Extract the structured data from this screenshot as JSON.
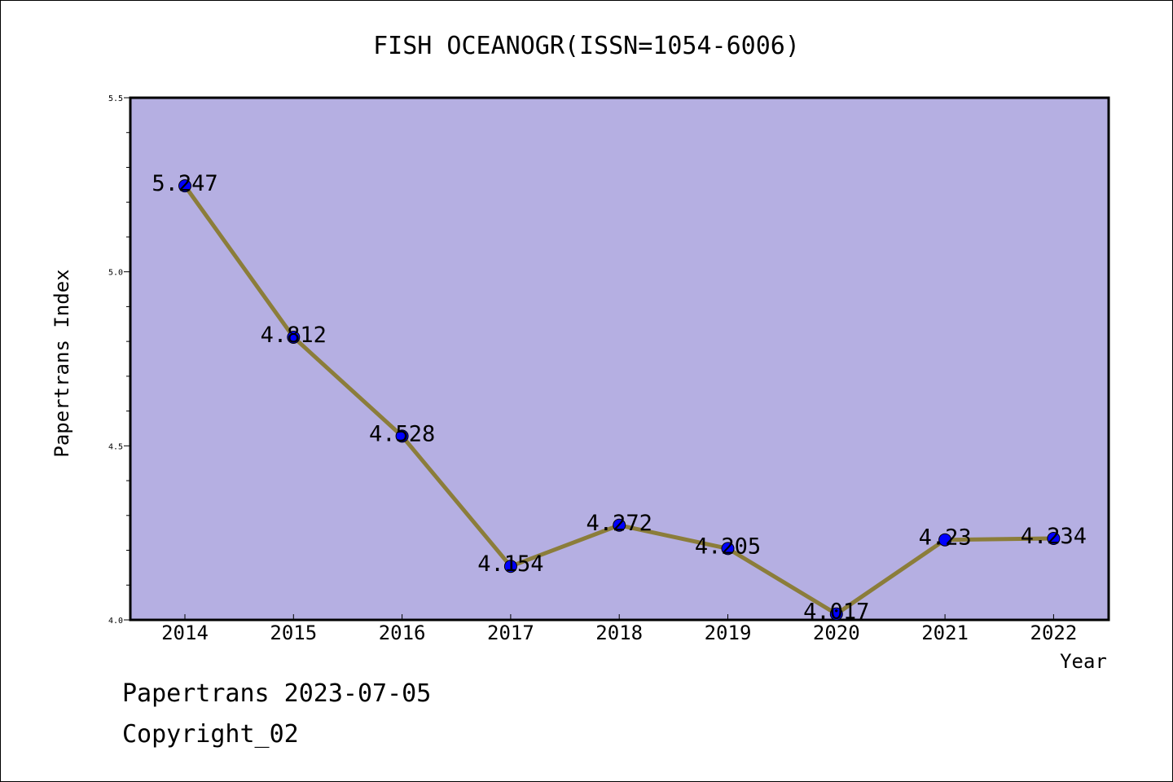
{
  "chart_data": {
    "type": "line",
    "title": "FISH OCEANOGR(ISSN=1054-6006)",
    "xlabel": "Year",
    "ylabel": "Papertrans Index",
    "categories": [
      "2014",
      "2015",
      "2016",
      "2017",
      "2018",
      "2019",
      "2020",
      "2021",
      "2022"
    ],
    "series": [
      {
        "values": [
          5.247,
          4.812,
          4.528,
          4.154,
          4.272,
          4.205,
          4.017,
          4.23,
          4.234
        ],
        "labels": [
          "5.247",
          "4.812",
          "4.528",
          "4.154",
          "4.272",
          "4.205",
          "4.017",
          "4.23",
          "4.234"
        ],
        "line_color": "#8B7D3A",
        "marker_color": "#0000FF"
      }
    ],
    "ylim": [
      4.0,
      5.5
    ],
    "yticks": [
      "4.0",
      "4.5",
      "5.0",
      "5.5"
    ],
    "plot_background": "#B5AFE2",
    "grid": false
  },
  "footer": {
    "line1": "Papertrans 2023-07-05",
    "line2": "Copyright_02"
  }
}
